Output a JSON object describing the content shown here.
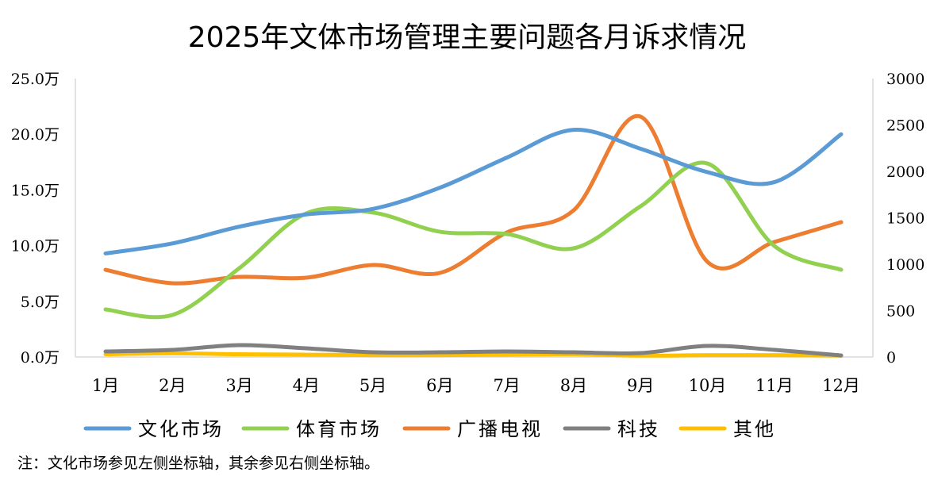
{
  "chart_data": {
    "type": "line",
    "title": "2025年文体市场管理主要问题各月诉求情况",
    "note": "注：文化市场参见左侧坐标轴，其余参见右侧坐标轴。",
    "categories": [
      "1月",
      "2月",
      "3月",
      "4月",
      "5月",
      "6月",
      "7月",
      "8月",
      "9月",
      "10月",
      "11月",
      "12月"
    ],
    "y_left": {
      "ticks": [
        "0.0万",
        "5.0万",
        "10.0万",
        "15.0万",
        "20.0万",
        "25.0万"
      ],
      "range": [
        0,
        25
      ],
      "unit": "万"
    },
    "y_right": {
      "ticks": [
        "0",
        "500",
        "1000",
        "1500",
        "2000",
        "2500",
        "3000"
      ],
      "range": [
        0,
        3000
      ]
    },
    "legend_position": "bottom",
    "series": [
      {
        "name": "文化市场",
        "axis": "left",
        "color": "#5B9BD5",
        "values": [
          9.3,
          10.2,
          11.7,
          12.8,
          13.3,
          15.2,
          17.9,
          20.4,
          18.7,
          16.6,
          15.7,
          20.0
        ]
      },
      {
        "name": "体育市场",
        "axis": "right",
        "color": "#92D050",
        "values": [
          513,
          453,
          957,
          1547,
          1556,
          1350,
          1325,
          1171,
          1624,
          2085,
          1197,
          940
        ]
      },
      {
        "name": "广播电视",
        "axis": "right",
        "color": "#ED7D31",
        "values": [
          940,
          795,
          863,
          855,
          991,
          906,
          1342,
          1581,
          2590,
          1026,
          1239,
          1453
        ]
      },
      {
        "name": "科技",
        "axis": "right",
        "color": "#808080",
        "values": [
          60,
          77,
          128,
          94,
          51,
          51,
          60,
          51,
          43,
          120,
          77,
          17
        ]
      },
      {
        "name": "其他",
        "axis": "right",
        "color": "#FFC000",
        "values": [
          30,
          40,
          30,
          25,
          20,
          20,
          25,
          30,
          15,
          20,
          20,
          15
        ]
      }
    ]
  }
}
